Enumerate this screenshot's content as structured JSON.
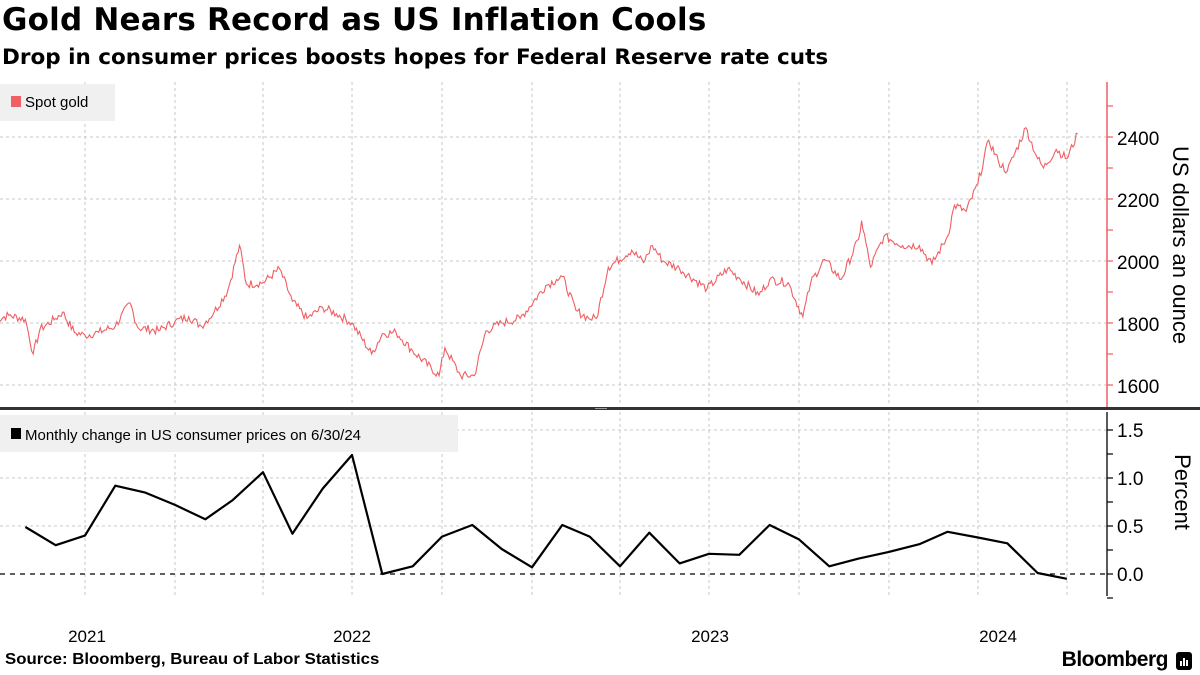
{
  "header": {
    "title": "Gold Nears Record as US Inflation Cools",
    "subtitle": "Drop in consumer prices boosts hopes for Federal Reserve rate cuts"
  },
  "footer": {
    "source": "Source: Bloomberg, Bureau of Labor Statistics",
    "brand": "Bloomberg"
  },
  "chart_data": [
    {
      "type": "line",
      "legend": "Spot gold",
      "ylabel": "US dollars an ounce",
      "ylim": [
        1550,
        2600
      ],
      "yticks": [
        "1600",
        "1800",
        "2000",
        "2200",
        "2400"
      ],
      "color": "#ef5f63",
      "grid": true,
      "legend_position": "top-left",
      "axis_side": "right",
      "series": [
        {
          "x": [
            "2021-07-01",
            "2021-07-15",
            "2021-08-01",
            "2021-08-09",
            "2021-08-16",
            "2021-09-01",
            "2021-09-08",
            "2021-09-20",
            "2021-10-01",
            "2021-10-15",
            "2021-11-01",
            "2021-11-16",
            "2021-11-24",
            "2021-12-15",
            "2022-01-01",
            "2022-01-15",
            "2022-01-28",
            "2022-02-10",
            "2022-02-24",
            "2022-03-08",
            "2022-03-15",
            "2022-04-01",
            "2022-04-18",
            "2022-05-01",
            "2022-05-16",
            "2022-06-01",
            "2022-06-15",
            "2022-07-01",
            "2022-07-21",
            "2022-08-01",
            "2022-08-15",
            "2022-09-01",
            "2022-09-28",
            "2022-10-04",
            "2022-10-20",
            "2022-11-03",
            "2022-11-15",
            "2022-12-01",
            "2022-12-20",
            "2023-01-15",
            "2023-01-26",
            "2023-02-01",
            "2023-02-15",
            "2023-02-28",
            "2023-03-08",
            "2023-03-20",
            "2023-04-13",
            "2023-04-25",
            "2023-05-04",
            "2023-05-15",
            "2023-06-01",
            "2023-06-29",
            "2023-07-20",
            "2023-08-01",
            "2023-08-21",
            "2023-09-01",
            "2023-09-20",
            "2023-10-05",
            "2023-10-13",
            "2023-10-27",
            "2023-11-13",
            "2023-12-01",
            "2023-12-04",
            "2023-12-13",
            "2023-12-27",
            "2024-01-15",
            "2024-02-01",
            "2024-02-14",
            "2024-03-01",
            "2024-03-08",
            "2024-03-20",
            "2024-04-01",
            "2024-04-12",
            "2024-04-22",
            "2024-05-01",
            "2024-05-20",
            "2024-06-01",
            "2024-06-07",
            "2024-06-20",
            "2024-07-01",
            "2024-07-12"
          ],
          "values": [
            1810,
            1825,
            1812,
            1700,
            1780,
            1815,
            1835,
            1770,
            1760,
            1770,
            1790,
            1865,
            1785,
            1775,
            1805,
            1820,
            1790,
            1835,
            1905,
            2050,
            1925,
            1930,
            1975,
            1870,
            1815,
            1850,
            1830,
            1800,
            1700,
            1765,
            1770,
            1710,
            1630,
            1720,
            1630,
            1630,
            1775,
            1800,
            1815,
            1920,
            1940,
            1950,
            1840,
            1815,
            1815,
            1980,
            2035,
            1995,
            2050,
            2000,
            1975,
            1910,
            1975,
            1945,
            1890,
            1940,
            1930,
            1820,
            1930,
            2005,
            1940,
            2070,
            2130,
            1980,
            2080,
            2050,
            2050,
            1990,
            2080,
            2180,
            2160,
            2250,
            2390,
            2320,
            2290,
            2430,
            2330,
            2300,
            2360,
            2330,
            2410
          ]
        }
      ]
    },
    {
      "type": "line",
      "legend": "Monthly change in US consumer prices on 6/30/24",
      "ylabel": "Percent",
      "ylim": [
        -0.25,
        1.65
      ],
      "yticks": [
        "0.0",
        "0.5",
        "1.0",
        "1.5"
      ],
      "color": "#000000",
      "grid": true,
      "zero_line": "dashed",
      "legend_position": "top-left",
      "axis_side": "right",
      "xticks": [
        "2021",
        "2022",
        "2023",
        "2024"
      ],
      "series": [
        {
          "x": [
            "2021-07",
            "2021-08",
            "2021-09",
            "2021-10",
            "2021-11",
            "2021-12",
            "2022-01",
            "2022-02",
            "2022-03",
            "2022-04",
            "2022-05",
            "2022-06",
            "2022-07",
            "2022-08",
            "2022-09",
            "2022-10",
            "2022-11",
            "2022-12",
            "2023-01",
            "2023-02",
            "2023-03",
            "2023-04",
            "2023-05",
            "2023-06",
            "2023-07",
            "2023-08",
            "2023-09",
            "2023-10",
            "2023-11",
            "2023-12",
            "2024-01",
            "2024-02",
            "2024-03",
            "2024-04",
            "2024-05",
            "2024-06"
          ],
          "values": [
            0.49,
            0.3,
            0.4,
            0.92,
            0.85,
            0.72,
            0.57,
            0.77,
            1.06,
            0.42,
            0.89,
            1.24,
            0.0,
            0.08,
            0.39,
            0.51,
            0.26,
            0.07,
            0.51,
            0.39,
            0.08,
            0.43,
            0.11,
            0.21,
            0.2,
            0.51,
            0.36,
            0.08,
            0.16,
            0.23,
            0.31,
            0.44,
            0.38,
            0.32,
            0.01,
            -0.05
          ]
        }
      ]
    }
  ]
}
